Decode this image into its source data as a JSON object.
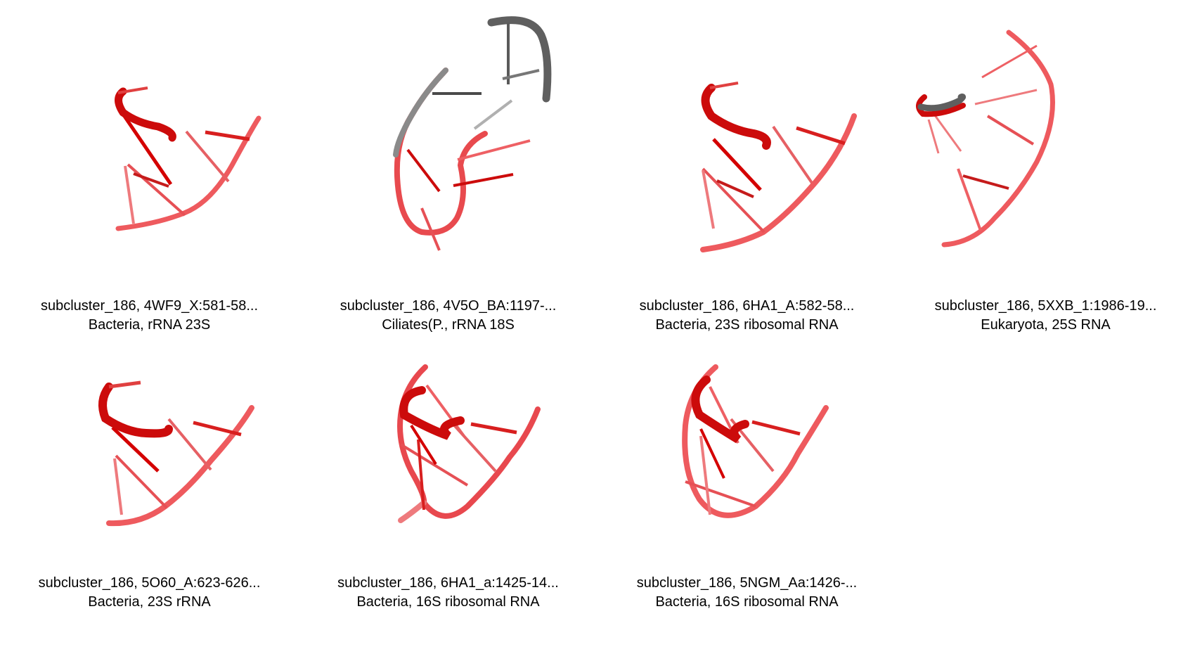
{
  "panels": [
    {
      "line1": "subcluster_186, 4WF9_X:581-58...",
      "line2": "Bacteria, rRNA 23S"
    },
    {
      "line1": "subcluster_186, 4V5O_BA:1197-...",
      "line2": "Ciliates(P., rRNA 18S"
    },
    {
      "line1": "subcluster_186, 6HA1_A:582-58...",
      "line2": "Bacteria, 23S ribosomal RNA"
    },
    {
      "line1": "subcluster_186, 5XXB_1:1986-19...",
      "line2": "Eukaryota, 25S RNA"
    },
    {
      "line1": "subcluster_186, 5O60_A:623-626...",
      "line2": "Bacteria, 23S rRNA"
    },
    {
      "line1": "subcluster_186, 6HA1_a:1425-14...",
      "line2": "Bacteria, 16S ribosomal RNA"
    },
    {
      "line1": "subcluster_186, 5NGM_Aa:1426-...",
      "line2": "Bacteria, 16S ribosomal RNA"
    }
  ],
  "colors": {
    "backbone": "#e8484e",
    "highlight": "#d40000",
    "gray": "#5f5f5f"
  }
}
